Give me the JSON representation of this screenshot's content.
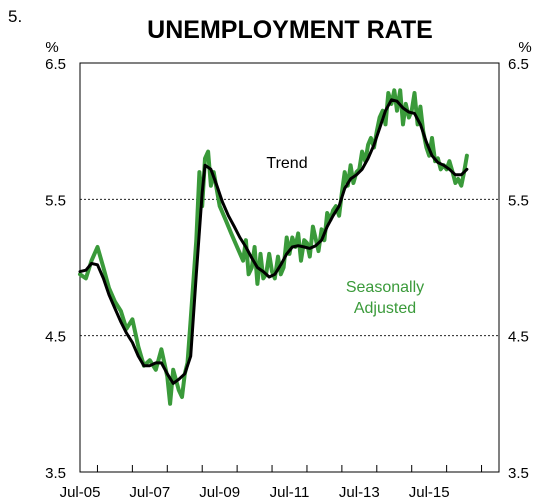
{
  "chart_data": {
    "type": "line",
    "figure_number": "5.",
    "title": "UNEMPLOYMENT RATE",
    "y_unit_left": "%",
    "y_unit_right": "%",
    "ylim": [
      3.5,
      6.5
    ],
    "y_ticks": [
      "6.5",
      "5.5",
      "4.5",
      "3.5"
    ],
    "y_tick_values": [
      6.5,
      5.5,
      4.5,
      3.5
    ],
    "gridlines_at": [
      5.5,
      4.5
    ],
    "xlim": [
      2005.5,
      2017.5
    ],
    "x_ticks": [
      {
        "label": "Jul-05",
        "value": 2005.5
      },
      {
        "label": "Jul-07",
        "value": 2007.5
      },
      {
        "label": "Jul-09",
        "value": 2009.5
      },
      {
        "label": "Jul-11",
        "value": 2011.5
      },
      {
        "label": "Jul-13",
        "value": 2013.5
      },
      {
        "label": "Jul-15",
        "value": 2015.5
      }
    ],
    "annotations": [
      {
        "text": "Trend",
        "series": "Trend"
      },
      {
        "text": "Seasonally",
        "series": "Seasonally Adjusted"
      },
      {
        "text": "Adjusted",
        "series": "Seasonally Adjusted"
      }
    ],
    "series": [
      {
        "name": "Seasonally Adjusted",
        "color": "#3a9a3a",
        "points": [
          [
            2005.5,
            4.95
          ],
          [
            2005.67,
            4.92
          ],
          [
            2005.83,
            5.05
          ],
          [
            2006.0,
            5.15
          ],
          [
            2006.17,
            5.0
          ],
          [
            2006.33,
            4.85
          ],
          [
            2006.5,
            4.75
          ],
          [
            2006.67,
            4.68
          ],
          [
            2006.83,
            4.55
          ],
          [
            2007.0,
            4.62
          ],
          [
            2007.17,
            4.42
          ],
          [
            2007.33,
            4.28
          ],
          [
            2007.5,
            4.32
          ],
          [
            2007.67,
            4.25
          ],
          [
            2007.83,
            4.4
          ],
          [
            2008.0,
            4.2
          ],
          [
            2008.08,
            4.0
          ],
          [
            2008.17,
            4.25
          ],
          [
            2008.33,
            4.1
          ],
          [
            2008.42,
            4.05
          ],
          [
            2008.5,
            4.22
          ],
          [
            2008.58,
            4.3
          ],
          [
            2008.67,
            4.62
          ],
          [
            2008.83,
            5.2
          ],
          [
            2008.92,
            5.7
          ],
          [
            2009.0,
            5.45
          ],
          [
            2009.08,
            5.8
          ],
          [
            2009.17,
            5.85
          ],
          [
            2009.25,
            5.6
          ],
          [
            2009.33,
            5.7
          ],
          [
            2009.5,
            5.45
          ],
          [
            2009.67,
            5.35
          ],
          [
            2009.83,
            5.25
          ],
          [
            2010.0,
            5.15
          ],
          [
            2010.17,
            5.05
          ],
          [
            2010.25,
            5.2
          ],
          [
            2010.33,
            4.95
          ],
          [
            2010.42,
            5.0
          ],
          [
            2010.5,
            5.15
          ],
          [
            2010.58,
            4.88
          ],
          [
            2010.67,
            5.1
          ],
          [
            2010.75,
            4.92
          ],
          [
            2010.83,
            4.95
          ],
          [
            2010.92,
            5.1
          ],
          [
            2011.0,
            4.97
          ],
          [
            2011.08,
            4.92
          ],
          [
            2011.17,
            5.08
          ],
          [
            2011.25,
            4.95
          ],
          [
            2011.33,
            5.0
          ],
          [
            2011.42,
            5.22
          ],
          [
            2011.5,
            5.1
          ],
          [
            2011.58,
            5.22
          ],
          [
            2011.67,
            5.15
          ],
          [
            2011.75,
            5.25
          ],
          [
            2011.83,
            5.05
          ],
          [
            2011.92,
            5.2
          ],
          [
            2012.0,
            5.18
          ],
          [
            2012.08,
            5.08
          ],
          [
            2012.17,
            5.3
          ],
          [
            2012.33,
            5.12
          ],
          [
            2012.42,
            5.28
          ],
          [
            2012.5,
            5.2
          ],
          [
            2012.58,
            5.4
          ],
          [
            2012.67,
            5.35
          ],
          [
            2012.75,
            5.42
          ],
          [
            2012.83,
            5.45
          ],
          [
            2012.92,
            5.38
          ],
          [
            2013.0,
            5.55
          ],
          [
            2013.08,
            5.7
          ],
          [
            2013.17,
            5.6
          ],
          [
            2013.25,
            5.75
          ],
          [
            2013.33,
            5.62
          ],
          [
            2013.42,
            5.7
          ],
          [
            2013.5,
            5.72
          ],
          [
            2013.58,
            5.85
          ],
          [
            2013.67,
            5.78
          ],
          [
            2013.75,
            5.9
          ],
          [
            2013.83,
            5.95
          ],
          [
            2013.92,
            5.88
          ],
          [
            2014.0,
            6.0
          ],
          [
            2014.08,
            6.1
          ],
          [
            2014.17,
            6.15
          ],
          [
            2014.25,
            6.05
          ],
          [
            2014.33,
            6.28
          ],
          [
            2014.42,
            6.2
          ],
          [
            2014.5,
            6.3
          ],
          [
            2014.58,
            6.15
          ],
          [
            2014.67,
            6.3
          ],
          [
            2014.75,
            6.05
          ],
          [
            2014.83,
            6.2
          ],
          [
            2014.92,
            6.1
          ],
          [
            2015.0,
            6.15
          ],
          [
            2015.08,
            6.28
          ],
          [
            2015.17,
            6.05
          ],
          [
            2015.25,
            6.18
          ],
          [
            2015.33,
            6.0
          ],
          [
            2015.42,
            5.88
          ],
          [
            2015.5,
            5.82
          ],
          [
            2015.58,
            5.95
          ],
          [
            2015.67,
            5.78
          ],
          [
            2015.75,
            5.8
          ],
          [
            2015.83,
            5.72
          ],
          [
            2015.92,
            5.75
          ],
          [
            2016.0,
            5.72
          ],
          [
            2016.08,
            5.78
          ],
          [
            2016.17,
            5.7
          ],
          [
            2016.25,
            5.62
          ],
          [
            2016.33,
            5.65
          ],
          [
            2016.42,
            5.6
          ],
          [
            2016.5,
            5.7
          ],
          [
            2016.58,
            5.82
          ]
        ]
      },
      {
        "name": "Trend",
        "color": "#000000",
        "points": [
          [
            2005.5,
            4.97
          ],
          [
            2005.67,
            4.98
          ],
          [
            2005.83,
            5.03
          ],
          [
            2006.0,
            5.02
          ],
          [
            2006.17,
            4.92
          ],
          [
            2006.33,
            4.8
          ],
          [
            2006.5,
            4.7
          ],
          [
            2006.67,
            4.6
          ],
          [
            2006.83,
            4.52
          ],
          [
            2007.0,
            4.45
          ],
          [
            2007.17,
            4.35
          ],
          [
            2007.33,
            4.28
          ],
          [
            2007.5,
            4.28
          ],
          [
            2007.67,
            4.3
          ],
          [
            2007.83,
            4.3
          ],
          [
            2008.0,
            4.22
          ],
          [
            2008.17,
            4.15
          ],
          [
            2008.33,
            4.18
          ],
          [
            2008.5,
            4.22
          ],
          [
            2008.67,
            4.35
          ],
          [
            2008.83,
            4.95
          ],
          [
            2009.0,
            5.55
          ],
          [
            2009.08,
            5.75
          ],
          [
            2009.25,
            5.72
          ],
          [
            2009.42,
            5.6
          ],
          [
            2009.58,
            5.48
          ],
          [
            2009.75,
            5.38
          ],
          [
            2009.92,
            5.3
          ],
          [
            2010.08,
            5.22
          ],
          [
            2010.25,
            5.15
          ],
          [
            2010.42,
            5.07
          ],
          [
            2010.58,
            5.0
          ],
          [
            2010.75,
            4.97
          ],
          [
            2010.92,
            4.93
          ],
          [
            2011.08,
            4.95
          ],
          [
            2011.25,
            5.02
          ],
          [
            2011.42,
            5.1
          ],
          [
            2011.58,
            5.15
          ],
          [
            2011.75,
            5.16
          ],
          [
            2011.92,
            5.15
          ],
          [
            2012.08,
            5.14
          ],
          [
            2012.25,
            5.16
          ],
          [
            2012.42,
            5.2
          ],
          [
            2012.58,
            5.3
          ],
          [
            2012.75,
            5.38
          ],
          [
            2012.92,
            5.45
          ],
          [
            2013.08,
            5.58
          ],
          [
            2013.25,
            5.65
          ],
          [
            2013.42,
            5.68
          ],
          [
            2013.58,
            5.72
          ],
          [
            2013.75,
            5.8
          ],
          [
            2013.92,
            5.9
          ],
          [
            2014.08,
            6.02
          ],
          [
            2014.25,
            6.15
          ],
          [
            2014.42,
            6.23
          ],
          [
            2014.58,
            6.22
          ],
          [
            2014.75,
            6.17
          ],
          [
            2014.92,
            6.14
          ],
          [
            2015.08,
            6.13
          ],
          [
            2015.25,
            6.05
          ],
          [
            2015.42,
            5.92
          ],
          [
            2015.58,
            5.82
          ],
          [
            2015.75,
            5.77
          ],
          [
            2015.92,
            5.75
          ],
          [
            2016.08,
            5.72
          ],
          [
            2016.25,
            5.68
          ],
          [
            2016.42,
            5.68
          ],
          [
            2016.58,
            5.72
          ]
        ]
      }
    ]
  }
}
